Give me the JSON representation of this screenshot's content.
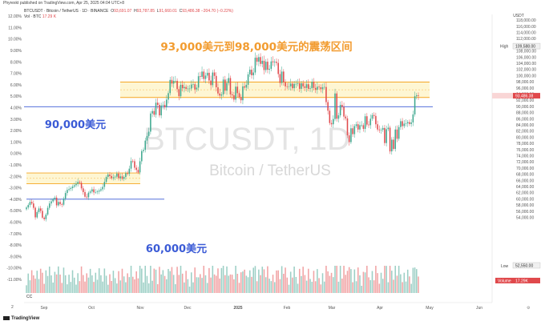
{
  "header": {
    "publisher": "Phyrexkt published on TradingView.com, Apr 25, 2025 04:04 UTC+8",
    "symbol_line": "BTCUSDT · Bitcoin / TetherUS · 1D · BINANCE",
    "ohlc": [
      {
        "label": "O",
        "value": "93,691.07"
      },
      {
        "label": "H",
        "value": "93,787.85"
      },
      {
        "label": "L",
        "value": "91,660.01"
      },
      {
        "label": "C",
        "value": "93,486.38"
      }
    ],
    "change": "−204.70 (−0.22%)",
    "vol_label": "Vol · BTC",
    "vol_value": "17.29 K"
  },
  "watermark": {
    "ticker": "BTCUSDT, 1D",
    "name": "Bitcoin / TetherUS"
  },
  "footer": {
    "brand": "TradingView",
    "cc": "CC",
    "corner": "2"
  },
  "chart_data": {
    "type": "candlestick",
    "colors": {
      "up": "#3ea88f",
      "down": "#e0494c",
      "vol_up": "#9ccfc5",
      "vol_down": "#f1a3a4",
      "zone": "#f5a623",
      "zone_fill": "#fdf3c4",
      "line": "#3b5bd6",
      "label_blue": "#3b5bd6",
      "label_orange": "#f29c30"
    },
    "x_ticks": [
      "Sep",
      "Oct",
      "Nov",
      "Dec",
      "2025",
      "Feb",
      "Mar",
      "Apr",
      "May",
      "Jun"
    ],
    "right_axis": {
      "ticks": [
        "118,000.00",
        "116,000.00",
        "114,000.00",
        "112,000.00",
        "110,000.00",
        "108,000.00",
        "106,000.00",
        "104,000.00",
        "102,000.00",
        "100,000.00",
        "98,000.00",
        "96,000.00",
        "94,000.00",
        "92,000.00",
        "90,000.00",
        "88,000.00",
        "86,000.00",
        "84,000.00",
        "82,000.00",
        "80,000.00",
        "78,000.00",
        "76,000.00",
        "74,000.00",
        "72,000.00",
        "70,000.00",
        "68,000.00",
        "66,000.00",
        "64,000.00",
        "62,000.00",
        "60,000.00",
        "58,000.00",
        "56,000.00",
        "54,000.00"
      ],
      "unit": "USDT",
      "high_label": "High",
      "high_value": "109,588.00",
      "low_label": "Low",
      "low_value": "52,550.00",
      "last_price": "93,486.38",
      "volume_label": "Volume",
      "volume_value": "17.29K"
    },
    "left_axis": {
      "ticks": [
        "12.00%",
        "11.00%",
        "10.00%",
        "9.00%",
        "8.00%",
        "7.00%",
        "6.00%",
        "5.00%",
        "4.00%",
        "3.00%",
        "2.00%",
        "1.00%",
        "0.00%",
        "-1.00%",
        "-2.00%",
        "-3.00%",
        "-4.00%",
        "-5.00%",
        "-6.00%",
        "-7.00%",
        "-8.00%",
        "-9.00%",
        "-10.00%",
        "-11.00%"
      ]
    },
    "zones": [
      {
        "top": 98000,
        "bottom": 93000,
        "label": "93,000美元到98,000美元的震荡区间"
      },
      {
        "top": 68500,
        "bottom": 65000,
        "label": ""
      }
    ],
    "lines": [
      {
        "price": 90000,
        "label": "90,000美元"
      },
      {
        "price": 60000,
        "label": "60,000美元"
      }
    ],
    "prices_approx": [
      57300,
      58100,
      59100,
      58600,
      57200,
      54100,
      55800,
      57000,
      56200,
      54000,
      53500,
      55000,
      57200,
      58600,
      59300,
      60000,
      60500,
      58000,
      59100,
      58400,
      58200,
      60200,
      62000,
      63000,
      63300,
      63600,
      64100,
      64500,
      65000,
      65600,
      65300,
      63500,
      62300,
      60800,
      60600,
      62100,
      62500,
      63200,
      62200,
      62300,
      62500,
      62800,
      63200,
      64000,
      65600,
      67200,
      68000,
      67500,
      66800,
      67100,
      67300,
      68300,
      66800,
      67400,
      66600,
      67200,
      68400,
      68200,
      69900,
      72400,
      72300,
      70200,
      69500,
      68700,
      72300,
      75600,
      76000,
      79000,
      80500,
      81900,
      87800,
      88600,
      87400,
      91300,
      90600,
      87200,
      90400,
      90600,
      89800,
      92300,
      94400,
      98700,
      97500,
      98400,
      98400,
      95700,
      93400,
      97100,
      96000,
      96400,
      95800,
      95900,
      95900,
      97200,
      97300,
      95600,
      96200,
      99900,
      99700,
      101400,
      99000,
      100100,
      101000,
      98500,
      97000,
      101100,
      100000,
      96300,
      94300,
      93600,
      94000,
      98800,
      95200,
      97700,
      99300,
      94000,
      93700,
      92300,
      96500,
      94400,
      93100,
      92100,
      96600,
      96200,
      97100,
      100500,
      102000,
      100200,
      101100,
      105900,
      104600,
      106100,
      103900,
      104900,
      101900,
      104600,
      102000,
      102300,
      104700,
      104400,
      104600,
      104200,
      100600,
      97700,
      101400,
      97900,
      96600,
      96500,
      96600,
      97500,
      96000,
      97400,
      97400,
      97600,
      95800,
      97600,
      96600,
      96100,
      97300,
      95800,
      96000,
      98100,
      96100,
      95500,
      96500,
      96300,
      95700,
      96300,
      96400,
      91500,
      88700,
      84700,
      84300,
      86000,
      94300,
      86100,
      87200,
      90600,
      89900,
      86800,
      86200,
      80700,
      78500,
      83000,
      81100,
      83700,
      84300,
      82600,
      84000,
      84000,
      82800,
      86900,
      84200,
      84000,
      86100,
      87300,
      87000,
      84300,
      82600,
      82400,
      82500,
      83100,
      78200,
      82700,
      83200,
      75500,
      79300,
      76300,
      82600,
      79600,
      83400,
      85300,
      83700,
      84500,
      84600,
      85000,
      84400,
      84900,
      87500,
      93400,
      93700,
      93500
    ],
    "label_texts": {
      "zone_top": "93,000美元到98,000美元的震荡区间",
      "line_90": "90,000美元",
      "line_60": "60,000美元"
    }
  }
}
